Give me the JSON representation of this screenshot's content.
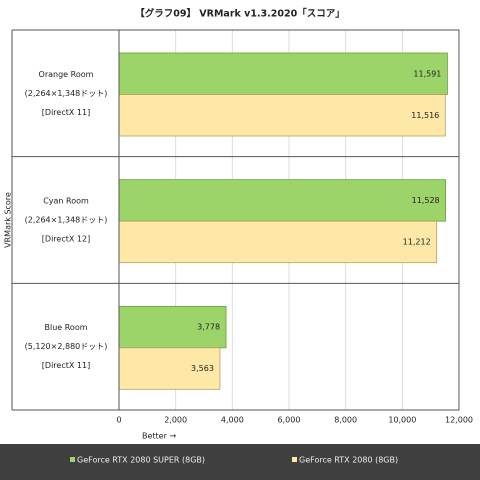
{
  "chart_data": {
    "type": "bar",
    "orientation": "horizontal",
    "title": "【グラフ09】 VRMark v1.3.2020「スコア」",
    "y_label": "VRMark Score",
    "x_label": "Better →",
    "categories": [
      [
        "Orange Room",
        "(2,264×1,348ドット)",
        "[DirectX 11]"
      ],
      [
        "Cyan Room",
        "(2,264×1,348ドット)",
        "[DirectX 12]"
      ],
      [
        "Blue Room",
        "(5,120×2,880ドット)",
        "[DirectX 11]"
      ]
    ],
    "series": [
      {
        "name": "GeForce RTX 2080 SUPER (8GB)",
        "color": "#9dd46a",
        "values": [
          11591,
          11528,
          3778
        ],
        "value_labels": [
          "11,591",
          "11,528",
          "3,778"
        ]
      },
      {
        "name": "GeForce RTX 2080 (8GB)",
        "color": "#fde8a8",
        "values": [
          11516,
          11212,
          3563
        ],
        "value_labels": [
          "11,516",
          "11,212",
          "3,563"
        ]
      }
    ],
    "xlim": [
      0,
      12000
    ],
    "xticks": [
      0,
      {
        "value": 2000,
        "label": "2,000"
      },
      {
        "value": 4000,
        "label": "4,000"
      },
      {
        "value": 6000,
        "label": "6,000"
      },
      {
        "value": 8000,
        "label": "8,000"
      },
      {
        "value": 10000,
        "label": "10,000"
      },
      {
        "value": 12000,
        "label": "12,000"
      }
    ],
    "grid": true
  }
}
